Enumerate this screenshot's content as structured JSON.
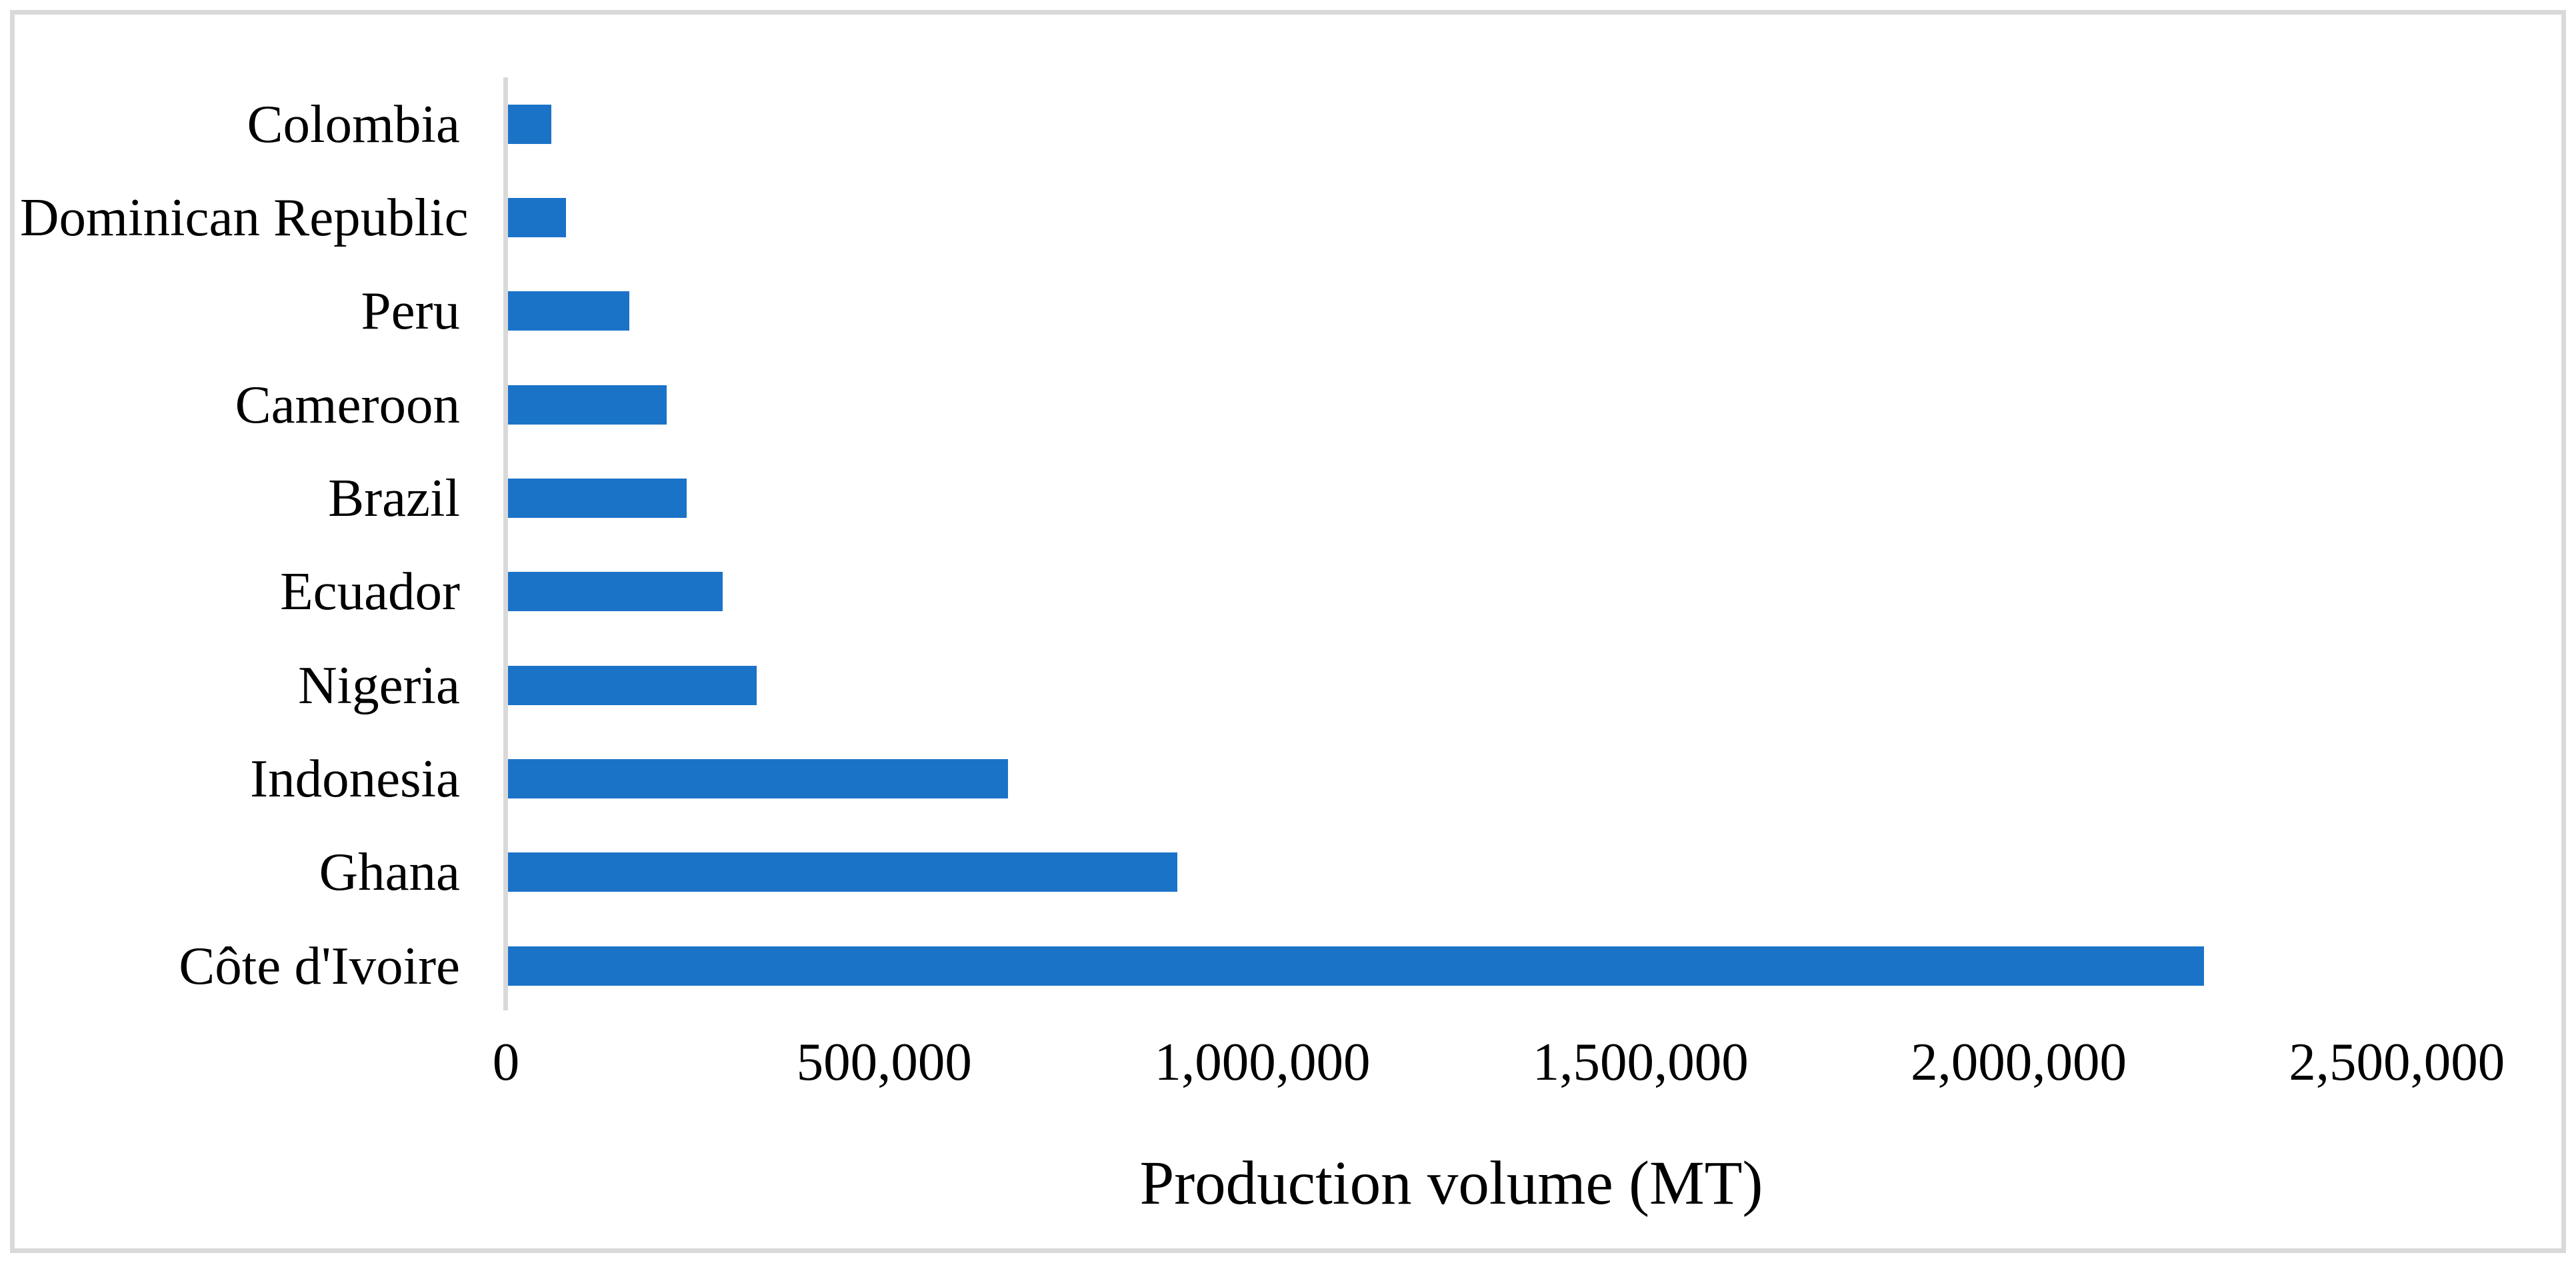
{
  "chart_data": {
    "type": "bar",
    "orientation": "horizontal",
    "title": "",
    "xlabel": "Production volume (MT)",
    "ylabel": "",
    "categories_order": "top-to-bottom",
    "categories": [
      "Colombia",
      "Dominican Republic",
      "Peru",
      "Cameroon",
      "Brazil",
      "Ecuador",
      "Nigeria",
      "Indonesia",
      "Ghana",
      "Côte d'Ivoire"
    ],
    "values": [
      57000,
      77000,
      160000,
      210000,
      236000,
      284000,
      329000,
      661000,
      885000,
      2242000
    ],
    "xlim": [
      0,
      2500000
    ],
    "xticks": [
      0,
      500000,
      1000000,
      1500000,
      2000000,
      2500000
    ],
    "xtick_labels": [
      "0",
      "500,000",
      "1,000,000",
      "1,500,000",
      "2,000,000",
      "2,500,000"
    ],
    "grid": false,
    "legend": false,
    "colors": {
      "bar_fill": "#1B73C8",
      "axis_line": "#D9D9D9",
      "frame_border": "#D9D9D9",
      "text": "#000000",
      "background": "#FFFFFF"
    }
  }
}
